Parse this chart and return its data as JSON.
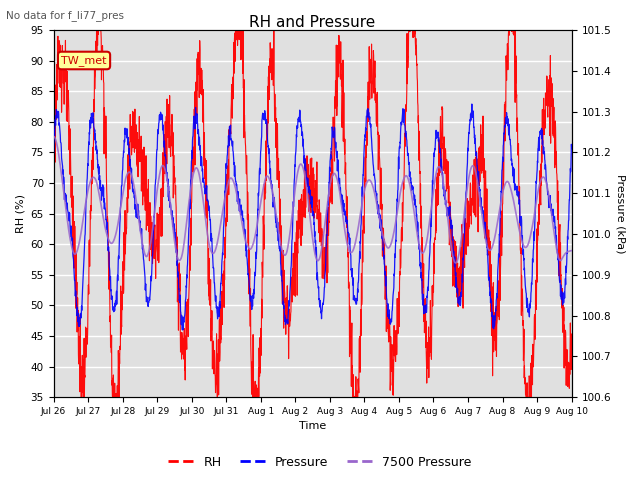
{
  "title": "RH and Pressure",
  "suptitle": "No data for f_li77_pres",
  "xlabel": "Time",
  "ylabel_left": "RH (%)",
  "ylabel_right": "Pressure (kPa)",
  "ylim_left": [
    35,
    95
  ],
  "ylim_right": [
    100.6,
    101.5
  ],
  "yticks_left": [
    35,
    40,
    45,
    50,
    55,
    60,
    65,
    70,
    75,
    80,
    85,
    90,
    95
  ],
  "yticks_right": [
    100.6,
    100.7,
    100.8,
    100.9,
    101.0,
    101.1,
    101.2,
    101.3,
    101.4,
    101.5
  ],
  "xtick_labels": [
    "Jul 26",
    "Jul 27",
    "Jul 28",
    "Jul 29",
    "Jul 30",
    "Jul 31",
    "Aug 1",
    "Aug 2",
    "Aug 3",
    "Aug 4",
    "Aug 5",
    "Aug 6",
    "Aug 7",
    "Aug 8",
    "Aug 9",
    "Aug 10"
  ],
  "legend_entries": [
    "RH",
    "Pressure",
    "7500 Pressure"
  ],
  "legend_colors": [
    "red",
    "blue",
    "#9966cc"
  ],
  "tw_met_label": "TW_met",
  "tw_met_color": "#cc0000",
  "tw_met_box_color": "#ffff99",
  "background_gray": "#e0e0e0",
  "grid_color": "white",
  "rh_color": "red",
  "pressure_color": "blue",
  "pressure7500_color": "#9966cc",
  "n_points": 2000,
  "n_days": 15
}
